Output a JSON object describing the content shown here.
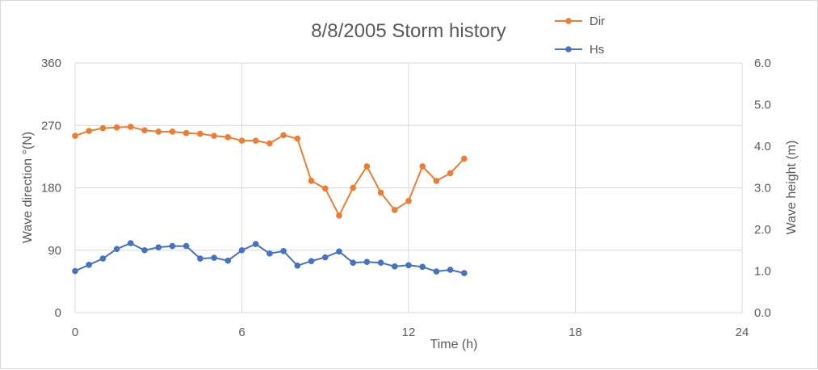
{
  "chart_data": {
    "type": "line",
    "title": "8/8/2005 Storm history",
    "xlabel": "Time (h)",
    "ylabel_left": "Wave direction °(N)",
    "ylabel_right": "Wave height (m)",
    "xlim": [
      0,
      24
    ],
    "ylim_left": [
      0,
      360
    ],
    "ylim_right": [
      0,
      6
    ],
    "x_ticks": [
      "0",
      "6",
      "12",
      "18",
      "24"
    ],
    "y_left_ticks": [
      "0",
      "90",
      "180",
      "270",
      "360"
    ],
    "y_right_ticks": [
      "0.0",
      "1.0",
      "2.0",
      "3.0",
      "4.0",
      "5.0",
      "6.0"
    ],
    "grid": true,
    "legend_position": "top-right",
    "series": [
      {
        "name": "Dir",
        "axis": "left",
        "color": "#ed7d31",
        "x": [
          0,
          0.5,
          1,
          1.5,
          2,
          2.5,
          3,
          3.5,
          4,
          4.5,
          5,
          5.5,
          6,
          6.5,
          7,
          7.5,
          8,
          8.5,
          9,
          9.5,
          10,
          10.5,
          11,
          11.5,
          12,
          12.5,
          13,
          13.5,
          14
        ],
        "values": [
          255,
          262,
          266,
          267,
          268,
          263,
          261,
          261,
          259,
          258,
          255,
          253,
          248,
          248,
          244,
          256,
          251,
          190,
          179,
          140,
          180,
          211,
          173,
          148,
          161,
          211,
          190,
          201,
          222
        ]
      },
      {
        "name": "Hs",
        "axis": "right",
        "color": "#4472c4",
        "x": [
          0,
          0.5,
          1,
          1.5,
          2,
          2.5,
          3,
          3.5,
          4,
          4.5,
          5,
          5.5,
          6,
          6.5,
          7,
          7.5,
          8,
          8.5,
          9,
          9.5,
          10,
          10.5,
          11,
          11.5,
          12,
          12.5,
          13,
          13.5,
          14
        ],
        "values": [
          1.0,
          1.15,
          1.3,
          1.53,
          1.67,
          1.5,
          1.57,
          1.6,
          1.6,
          1.3,
          1.32,
          1.25,
          1.5,
          1.65,
          1.42,
          1.48,
          1.13,
          1.24,
          1.33,
          1.47,
          1.2,
          1.22,
          1.2,
          1.11,
          1.14,
          1.1,
          0.99,
          1.03,
          0.95
        ]
      }
    ]
  }
}
